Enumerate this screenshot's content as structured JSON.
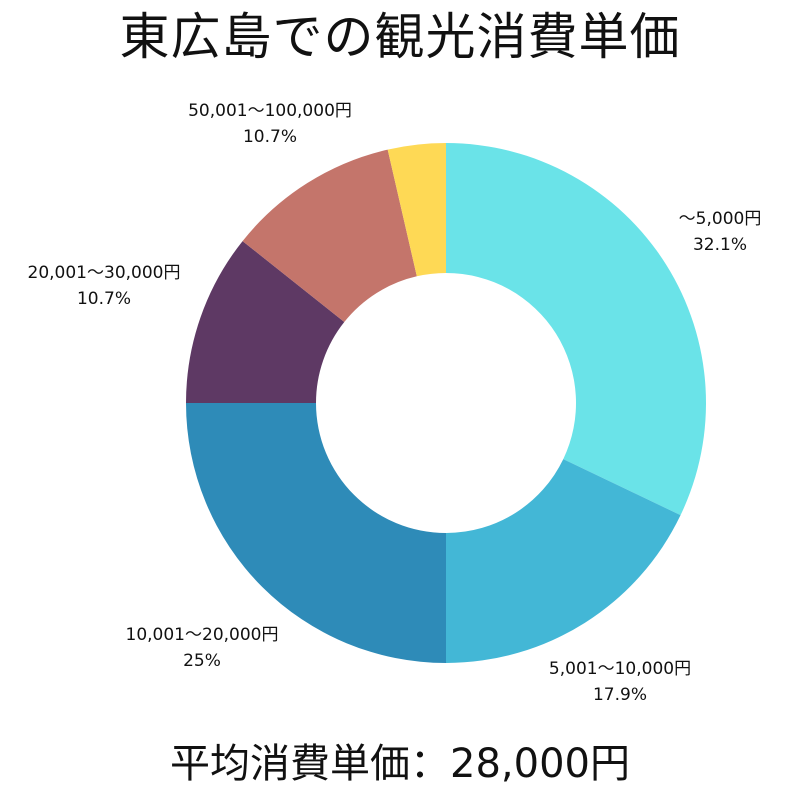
{
  "chart_data": {
    "type": "pie",
    "title": "東広島での観光消費単価",
    "donut": true,
    "legend": "none",
    "slices": [
      {
        "label": "〜5,000円",
        "value": 32.1,
        "value_label": "32.1%",
        "color": "#6ae3e8"
      },
      {
        "label": "5,001〜10,000円",
        "value": 17.9,
        "value_label": "17.9%",
        "color": "#43b7d6"
      },
      {
        "label": "10,001〜20,000円",
        "value": 25,
        "value_label": "25%",
        "color": "#2e8bb8"
      },
      {
        "label": "20,001〜30,000円",
        "value": 10.7,
        "value_label": "10.7%",
        "color": "#5e3964"
      },
      {
        "label": "50,001〜100,000円",
        "value": 10.7,
        "value_label": "10.7%",
        "color": "#c4756b"
      },
      {
        "label": "",
        "value": 3.6,
        "value_label": "",
        "color": "#fed955"
      }
    ]
  },
  "footer": {
    "text": "平均消費単価：28,000円"
  }
}
